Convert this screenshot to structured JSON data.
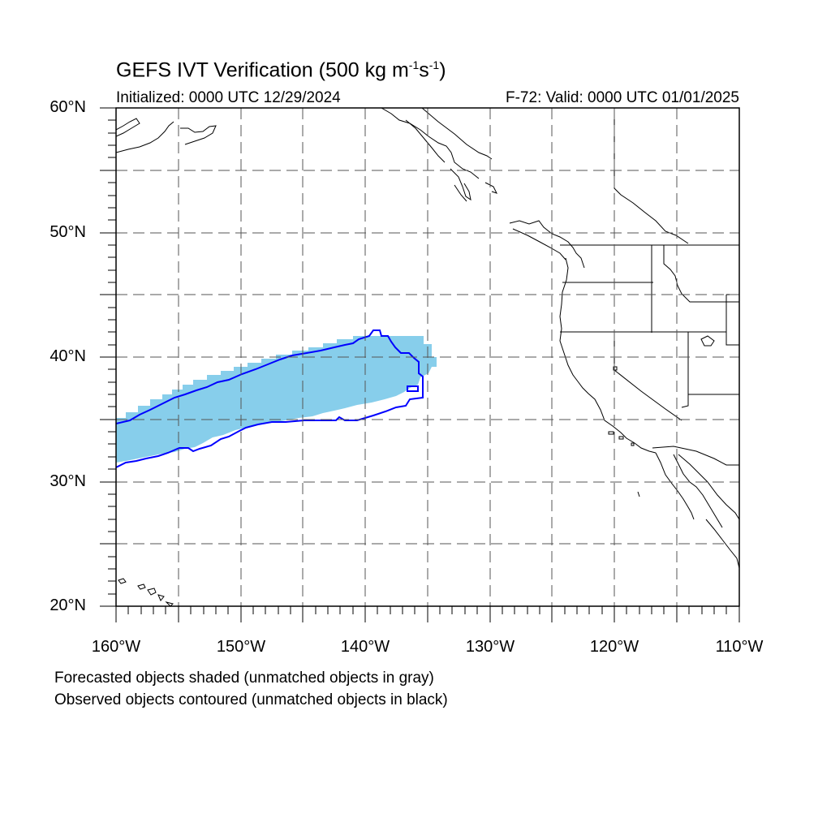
{
  "title": {
    "main": "GEFS IVT Verification (500 kg m",
    "exp1": "-1",
    "mid": "s",
    "exp2": "-1",
    "end": ")"
  },
  "subtitle_left": "Initialized: 0000 UTC 12/29/2024",
  "subtitle_right": "F-72: Valid: 0000 UTC 01/01/2025",
  "lat_labels": [
    "60°N",
    "50°N",
    "40°N",
    "30°N",
    "20°N"
  ],
  "lon_labels": [
    "160°W",
    "150°W",
    "140°W",
    "130°W",
    "120°W",
    "110°W"
  ],
  "notes": [
    "Forecasted objects shaded (unmatched objects in gray)",
    "Observed objects contoured (unmatched objects in black)"
  ],
  "map": {
    "lon_range": [
      -160,
      -110
    ],
    "lat_range": [
      20,
      60
    ],
    "grid_interval_deg": 5,
    "forecast_fill_color": "#87ceeb",
    "observed_contour_color": "#0000ff"
  }
}
